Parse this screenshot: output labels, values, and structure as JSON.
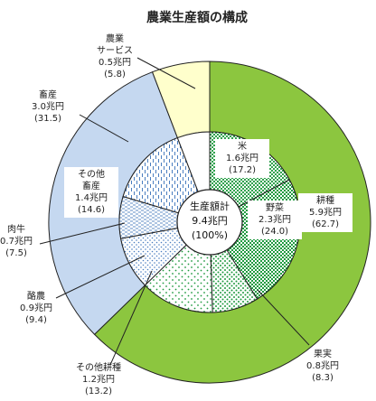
{
  "chart_data": {
    "type": "pie",
    "title": "農業生産額の構成",
    "center": {
      "line1": "生産額計",
      "line2": "9.4兆円",
      "line3": "(100%)"
    },
    "outer_ring": {
      "slices": [
        {
          "label": "耕種",
          "value_text": "5.9兆円",
          "pct_text": "(62.7)",
          "pct": 62.7,
          "color": "#8cc63f"
        },
        {
          "label": "畜産",
          "value_text": "3.0兆円",
          "pct_text": "(31.5)",
          "pct": 31.5,
          "color": "#c5d8f0"
        },
        {
          "label": "農業サービス",
          "label_lines": [
            "農業",
            "サービス"
          ],
          "value_text": "0.5兆円",
          "pct_text": "(5.8)",
          "pct": 5.8,
          "color": "#ffffcc"
        }
      ]
    },
    "inner_ring": {
      "slices": [
        {
          "label": "米",
          "value_text": "1.6兆円",
          "pct_text": "(17.2)",
          "pct": 17.2,
          "color": "#22a045",
          "pattern": "dots-dense"
        },
        {
          "label": "野菜",
          "value_text": "2.3兆円",
          "pct_text": "(24.0)",
          "pct": 24.0,
          "color": "#22a045",
          "pattern": "checker"
        },
        {
          "label": "果実",
          "value_text": "0.8兆円",
          "pct_text": "(8.3)",
          "pct": 8.3,
          "color": "#22a045",
          "pattern": "dots-medium"
        },
        {
          "label": "その他耕種",
          "value_text": "1.2兆円",
          "pct_text": "(13.2)",
          "pct": 13.2,
          "color": "#22a045",
          "pattern": "dots-sparse"
        },
        {
          "label": "酪農",
          "value_text": "0.9兆円",
          "pct_text": "(9.4)",
          "pct": 9.4,
          "color": "#4a7ec0",
          "pattern": "dots-fine"
        },
        {
          "label": "肉牛",
          "value_text": "0.7兆円",
          "pct_text": "(7.5)",
          "pct": 7.5,
          "color": "#4a7ec0",
          "pattern": "hlines"
        },
        {
          "label": "その他畜産",
          "label_lines": [
            "その他",
            "畜産"
          ],
          "value_text": "1.4兆円",
          "pct_text": "(14.6)",
          "pct": 14.6,
          "color": "#4a7ec0",
          "pattern": "dashes-vertical"
        },
        {
          "label": "農業サービス",
          "value_text": "",
          "pct_text": "",
          "pct": 5.8,
          "color": "#ffffff",
          "pattern": "none"
        }
      ]
    }
  }
}
